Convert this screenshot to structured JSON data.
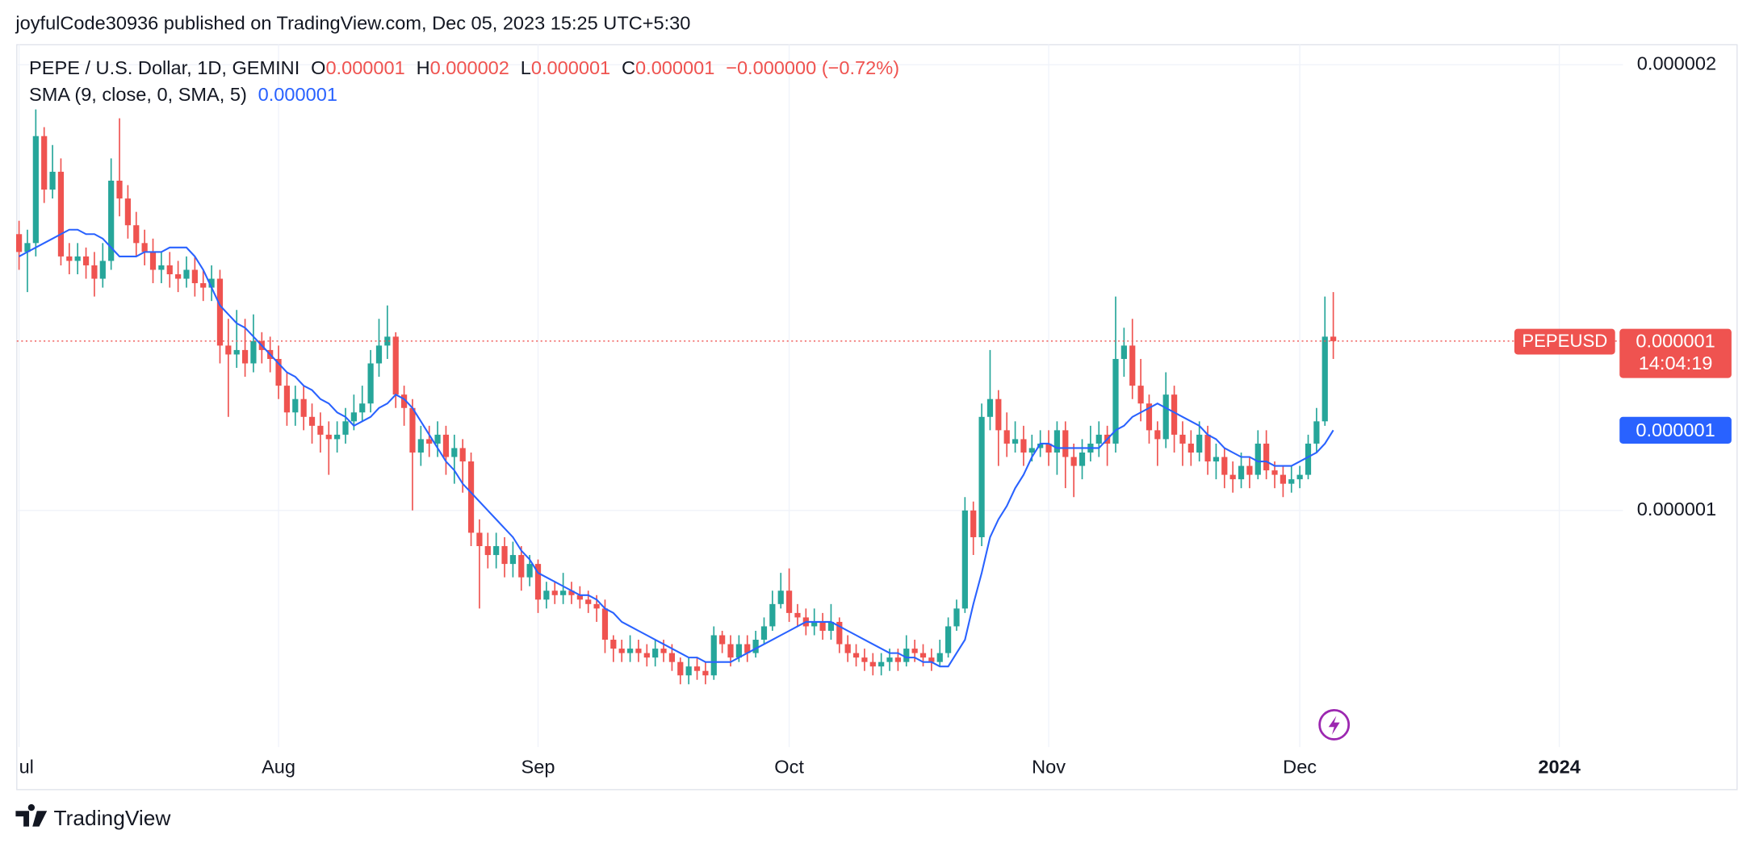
{
  "header": {
    "publisher": "joyfulCode30936 published on TradingView.com, Dec 05, 2023 15:25 UTC+5:30"
  },
  "legend": {
    "symbol": "PEPE / U.S. Dollar, 1D, GEMINI",
    "o_label": "O",
    "open": "0.000001",
    "h_label": "H",
    "high": "0.000002",
    "l_label": "L",
    "low": "0.000001",
    "c_label": "C",
    "close": "0.000001",
    "change": "−0.000000 (−0.72%)",
    "indicator": "SMA (9, close, 0, SMA, 5)",
    "indicator_value": "0.000001"
  },
  "badges": {
    "symbol": "PEPEUSD",
    "price": "0.000001",
    "countdown": "14:04:19",
    "sma": "0.000001"
  },
  "footer": {
    "brand": "TradingView"
  },
  "chart_data": {
    "type": "candlestick",
    "up_color": "#26a69a",
    "down_color": "#ef5350",
    "sma_color": "#2962ff",
    "grid": true,
    "xlim": [
      -0.27,
      191.6
    ],
    "ylim": [
      4.69e-07,
      2.045e-06
    ],
    "yticks": [
      2e-06,
      1e-06
    ],
    "xticks": [
      {
        "value": 0,
        "label": "ul"
      },
      {
        "value": 31,
        "label": "Aug"
      },
      {
        "value": 62,
        "label": "Sep"
      },
      {
        "value": 92,
        "label": "Oct"
      },
      {
        "value": 123,
        "label": "Nov"
      },
      {
        "value": 153,
        "label": "Dec"
      },
      {
        "value": 184,
        "label": "2024"
      }
    ],
    "open": [
      1.62e-06,
      1.58e-06,
      1.6e-06,
      1.84e-06,
      1.72e-06,
      1.76e-06,
      1.57e-06,
      1.56e-06,
      1.57e-06,
      1.55e-06,
      1.52e-06,
      1.56e-06,
      1.74e-06,
      1.7e-06,
      1.64e-06,
      1.6e-06,
      1.58e-06,
      1.54e-06,
      1.55e-06,
      1.53e-06,
      1.52e-06,
      1.54e-06,
      1.51e-06,
      1.5e-06,
      1.52e-06,
      1.37e-06,
      1.35e-06,
      1.36e-06,
      1.33e-06,
      1.38e-06,
      1.36e-06,
      1.34e-06,
      1.28e-06,
      1.22e-06,
      1.25e-06,
      1.21e-06,
      1.19e-06,
      1.17e-06,
      1.16e-06,
      1.17e-06,
      1.2e-06,
      1.22e-06,
      1.24e-06,
      1.33e-06,
      1.37e-06,
      1.39e-06,
      1.26e-06,
      1.23e-06,
      1.13e-06,
      1.16e-06,
      1.15e-06,
      1.17e-06,
      1.12e-06,
      1.14e-06,
      1.11e-06,
      9.5e-07,
      9.2e-07,
      9e-07,
      9.2e-07,
      8.8e-07,
      9e-07,
      8.5e-07,
      8.8e-07,
      8e-07,
      8.2e-07,
      8.1e-07,
      8.2e-07,
      8.1e-07,
      8e-07,
      7.9e-07,
      7.8e-07,
      7.1e-07,
      6.9e-07,
      6.8e-07,
      6.9e-07,
      6.8e-07,
      6.7e-07,
      6.9e-07,
      6.8e-07,
      6.6e-07,
      6.3e-07,
      6.5e-07,
      6.4e-07,
      6.3e-07,
      7.2e-07,
      7e-07,
      6.7e-07,
      7e-07,
      6.8e-07,
      7.1e-07,
      7.4e-07,
      7.9e-07,
      8.2e-07,
      7.7e-07,
      7.6e-07,
      7.4e-07,
      7.5e-07,
      7.3e-07,
      7.5e-07,
      7e-07,
      6.8e-07,
      6.7e-07,
      6.6e-07,
      6.5e-07,
      6.6e-07,
      6.7e-07,
      6.6e-07,
      6.9e-07,
      6.8e-07,
      6.7e-07,
      6.6e-07,
      6.8e-07,
      7.4e-07,
      7.8e-07,
      1e-06,
      9.4e-07,
      1.21e-06,
      1.25e-06,
      1.18e-06,
      1.15e-06,
      1.16e-06,
      1.13e-06,
      1.14e-06,
      1.15e-06,
      1.13e-06,
      1.18e-06,
      1.12e-06,
      1.1e-06,
      1.13e-06,
      1.15e-06,
      1.17e-06,
      1.15e-06,
      1.34e-06,
      1.37e-06,
      1.28e-06,
      1.24e-06,
      1.18e-06,
      1.16e-06,
      1.26e-06,
      1.17e-06,
      1.15e-06,
      1.13e-06,
      1.17e-06,
      1.11e-06,
      1.12e-06,
      1.08e-06,
      1.07e-06,
      1.1e-06,
      1.08e-06,
      1.15e-06,
      1.09e-06,
      1.08e-06,
      1.06e-06,
      1.07e-06,
      1.08e-06,
      1.15e-06,
      1.2e-06,
      1.39e-06
    ],
    "high": [
      1.65e-06,
      1.63e-06,
      1.9e-06,
      1.86e-06,
      1.82e-06,
      1.79e-06,
      1.6e-06,
      1.6e-06,
      1.59e-06,
      1.58e-06,
      1.6e-06,
      1.79e-06,
      1.88e-06,
      1.73e-06,
      1.67e-06,
      1.63e-06,
      1.61e-06,
      1.58e-06,
      1.58e-06,
      1.56e-06,
      1.57e-06,
      1.57e-06,
      1.54e-06,
      1.55e-06,
      1.54e-06,
      1.43e-06,
      1.45e-06,
      1.43e-06,
      1.44e-06,
      1.4e-06,
      1.39e-06,
      1.37e-06,
      1.31e-06,
      1.28e-06,
      1.28e-06,
      1.24e-06,
      1.22e-06,
      1.2e-06,
      1.2e-06,
      1.23e-06,
      1.26e-06,
      1.28e-06,
      1.36e-06,
      1.43e-06,
      1.46e-06,
      1.4e-06,
      1.28e-06,
      1.25e-06,
      1.19e-06,
      1.19e-06,
      1.2e-06,
      1.19e-06,
      1.17e-06,
      1.16e-06,
      1.13e-06,
      9.8e-07,
      9.5e-07,
      9.5e-07,
      9.4e-07,
      9.3e-07,
      9.2e-07,
      9e-07,
      8.9e-07,
      8.4e-07,
      8.4e-07,
      8.6e-07,
      8.4e-07,
      8.3e-07,
      8.2e-07,
      8.1e-07,
      8e-07,
      7.2e-07,
      7.1e-07,
      7.2e-07,
      7.1e-07,
      7e-07,
      7.1e-07,
      7.1e-07,
      7e-07,
      6.7e-07,
      6.7e-07,
      6.7e-07,
      6.6e-07,
      7.4e-07,
      7.3e-07,
      7.2e-07,
      7.2e-07,
      7.2e-07,
      7.3e-07,
      7.6e-07,
      8.2e-07,
      8.6e-07,
      8.7e-07,
      7.9e-07,
      7.8e-07,
      7.8e-07,
      7.7e-07,
      7.9e-07,
      7.6e-07,
      7.2e-07,
      7e-07,
      6.9e-07,
      6.8e-07,
      6.8e-07,
      6.9e-07,
      6.9e-07,
      7.2e-07,
      7.1e-07,
      7e-07,
      6.9e-07,
      7.1e-07,
      7.6e-07,
      8e-07,
      1.03e-06,
      1.02e-06,
      1.24e-06,
      1.36e-06,
      1.27e-06,
      1.22e-06,
      1.2e-06,
      1.19e-06,
      1.17e-06,
      1.18e-06,
      1.18e-06,
      1.2e-06,
      1.2e-06,
      1.15e-06,
      1.16e-06,
      1.19e-06,
      1.2e-06,
      1.19e-06,
      1.48e-06,
      1.41e-06,
      1.43e-06,
      1.34e-06,
      1.26e-06,
      1.2e-06,
      1.31e-06,
      1.28e-06,
      1.2e-06,
      1.18e-06,
      1.2e-06,
      1.19e-06,
      1.15e-06,
      1.14e-06,
      1.11e-06,
      1.13e-06,
      1.12e-06,
      1.18e-06,
      1.18e-06,
      1.11e-06,
      1.1e-06,
      1.1e-06,
      1.1e-06,
      1.17e-06,
      1.23e-06,
      1.48e-06,
      1.49e-06
    ],
    "low": [
      1.54e-06,
      1.49e-06,
      1.57e-06,
      1.69e-06,
      1.7e-06,
      1.55e-06,
      1.53e-06,
      1.53e-06,
      1.52e-06,
      1.48e-06,
      1.5e-06,
      1.54e-06,
      1.66e-06,
      1.61e-06,
      1.57e-06,
      1.55e-06,
      1.51e-06,
      1.51e-06,
      1.5e-06,
      1.49e-06,
      1.5e-06,
      1.48e-06,
      1.47e-06,
      1.47e-06,
      1.33e-06,
      1.21e-06,
      1.32e-06,
      1.3e-06,
      1.31e-06,
      1.33e-06,
      1.31e-06,
      1.25e-06,
      1.19e-06,
      1.19e-06,
      1.18e-06,
      1.15e-06,
      1.13e-06,
      1.08e-06,
      1.13e-06,
      1.15e-06,
      1.18e-06,
      1.2e-06,
      1.22e-06,
      1.3e-06,
      1.34e-06,
      1.23e-06,
      1.19e-06,
      1e-06,
      1.1e-06,
      1.12e-06,
      1.12e-06,
      1.08e-06,
      1.06e-06,
      1.04e-06,
      9.2e-07,
      7.8e-07,
      8.7e-07,
      8.7e-07,
      8.5e-07,
      8.5e-07,
      8.2e-07,
      8.3e-07,
      7.7e-07,
      7.8e-07,
      7.9e-07,
      7.9e-07,
      7.9e-07,
      7.8e-07,
      7.7e-07,
      7.5e-07,
      6.8e-07,
      6.6e-07,
      6.6e-07,
      6.6e-07,
      6.6e-07,
      6.5e-07,
      6.5e-07,
      6.6e-07,
      6.4e-07,
      6.1e-07,
      6.1e-07,
      6.2e-07,
      6.1e-07,
      6.2e-07,
      6.8e-07,
      6.5e-07,
      6.6e-07,
      6.6e-07,
      6.7e-07,
      7e-07,
      7.3e-07,
      7.8e-07,
      7.5e-07,
      7.4e-07,
      7.2e-07,
      7.2e-07,
      7.1e-07,
      7.1e-07,
      6.8e-07,
      6.6e-07,
      6.5e-07,
      6.4e-07,
      6.3e-07,
      6.3e-07,
      6.4e-07,
      6.4e-07,
      6.5e-07,
      6.6e-07,
      6.5e-07,
      6.4e-07,
      6.5e-07,
      6.7e-07,
      7.3e-07,
      7.7e-07,
      9e-07,
      9.2e-07,
      1.18e-06,
      1.1e-06,
      1.12e-06,
      1.13e-06,
      1.1e-06,
      1.11e-06,
      1.12e-06,
      1.1e-06,
      1.08e-06,
      1.05e-06,
      1.03e-06,
      1.07e-06,
      1.11e-06,
      1.12e-06,
      1.1e-06,
      1.13e-06,
      1.3e-06,
      1.25e-06,
      1.2e-06,
      1.15e-06,
      1.1e-06,
      1.14e-06,
      1.13e-06,
      1.1e-06,
      1.1e-06,
      1.11e-06,
      1.08e-06,
      1.07e-06,
      1.05e-06,
      1.04e-06,
      1.05e-06,
      1.05e-06,
      1.07e-06,
      1.07e-06,
      1.05e-06,
      1.03e-06,
      1.04e-06,
      1.05e-06,
      1.07e-06,
      1.13e-06,
      1.19e-06,
      1.34e-06
    ],
    "close": [
      1.58e-06,
      1.6e-06,
      1.84e-06,
      1.72e-06,
      1.76e-06,
      1.57e-06,
      1.56e-06,
      1.57e-06,
      1.55e-06,
      1.52e-06,
      1.56e-06,
      1.74e-06,
      1.7e-06,
      1.64e-06,
      1.6e-06,
      1.58e-06,
      1.54e-06,
      1.55e-06,
      1.53e-06,
      1.52e-06,
      1.54e-06,
      1.51e-06,
      1.5e-06,
      1.52e-06,
      1.37e-06,
      1.35e-06,
      1.36e-06,
      1.33e-06,
      1.38e-06,
      1.36e-06,
      1.34e-06,
      1.28e-06,
      1.22e-06,
      1.25e-06,
      1.21e-06,
      1.19e-06,
      1.17e-06,
      1.16e-06,
      1.17e-06,
      1.2e-06,
      1.22e-06,
      1.24e-06,
      1.33e-06,
      1.37e-06,
      1.39e-06,
      1.26e-06,
      1.23e-06,
      1.13e-06,
      1.16e-06,
      1.15e-06,
      1.17e-06,
      1.12e-06,
      1.14e-06,
      1.11e-06,
      9.5e-07,
      9.2e-07,
      9e-07,
      9.2e-07,
      8.8e-07,
      9e-07,
      8.5e-07,
      8.8e-07,
      8e-07,
      8.2e-07,
      8.1e-07,
      8.2e-07,
      8.1e-07,
      8e-07,
      7.9e-07,
      7.8e-07,
      7.1e-07,
      6.9e-07,
      6.8e-07,
      6.9e-07,
      6.8e-07,
      6.7e-07,
      6.9e-07,
      6.8e-07,
      6.6e-07,
      6.3e-07,
      6.5e-07,
      6.4e-07,
      6.3e-07,
      7.2e-07,
      7e-07,
      6.7e-07,
      7e-07,
      6.8e-07,
      7.1e-07,
      7.4e-07,
      7.9e-07,
      8.2e-07,
      7.7e-07,
      7.6e-07,
      7.4e-07,
      7.5e-07,
      7.3e-07,
      7.5e-07,
      7e-07,
      6.8e-07,
      6.7e-07,
      6.6e-07,
      6.5e-07,
      6.6e-07,
      6.7e-07,
      6.6e-07,
      6.9e-07,
      6.8e-07,
      6.7e-07,
      6.6e-07,
      6.8e-07,
      7.4e-07,
      7.8e-07,
      1e-06,
      9.4e-07,
      1.21e-06,
      1.25e-06,
      1.18e-06,
      1.15e-06,
      1.16e-06,
      1.13e-06,
      1.14e-06,
      1.15e-06,
      1.13e-06,
      1.18e-06,
      1.12e-06,
      1.1e-06,
      1.13e-06,
      1.15e-06,
      1.17e-06,
      1.15e-06,
      1.34e-06,
      1.37e-06,
      1.28e-06,
      1.24e-06,
      1.18e-06,
      1.16e-06,
      1.26e-06,
      1.17e-06,
      1.15e-06,
      1.13e-06,
      1.17e-06,
      1.11e-06,
      1.12e-06,
      1.08e-06,
      1.07e-06,
      1.1e-06,
      1.08e-06,
      1.15e-06,
      1.09e-06,
      1.08e-06,
      1.06e-06,
      1.07e-06,
      1.08e-06,
      1.15e-06,
      1.2e-06,
      1.39e-06,
      1.38e-06
    ],
    "sma": [
      1.57e-06,
      1.58e-06,
      1.59e-06,
      1.6e-06,
      1.61e-06,
      1.62e-06,
      1.63e-06,
      1.63e-06,
      1.62e-06,
      1.62e-06,
      1.61e-06,
      1.59e-06,
      1.57e-06,
      1.57e-06,
      1.57e-06,
      1.58e-06,
      1.58e-06,
      1.58e-06,
      1.59e-06,
      1.59e-06,
      1.59e-06,
      1.57e-06,
      1.54e-06,
      1.5e-06,
      1.46e-06,
      1.44e-06,
      1.42e-06,
      1.41e-06,
      1.39e-06,
      1.37e-06,
      1.35e-06,
      1.33e-06,
      1.31e-06,
      1.3e-06,
      1.28e-06,
      1.27e-06,
      1.25e-06,
      1.24e-06,
      1.22e-06,
      1.21e-06,
      1.19e-06,
      1.2e-06,
      1.21e-06,
      1.23e-06,
      1.24e-06,
      1.26e-06,
      1.25e-06,
      1.23e-06,
      1.2e-06,
      1.17e-06,
      1.14e-06,
      1.11e-06,
      1.09e-06,
      1.06e-06,
      1.04e-06,
      1.02e-06,
      1e-06,
      9.8e-07,
      9.6e-07,
      9.4e-07,
      9.1e-07,
      8.9e-07,
      8.6e-07,
      8.5e-07,
      8.4e-07,
      8.3e-07,
      8.2e-07,
      8.1e-07,
      8.1e-07,
      8e-07,
      7.8e-07,
      7.7e-07,
      7.5e-07,
      7.4e-07,
      7.3e-07,
      7.2e-07,
      7.1e-07,
      7e-07,
      6.9e-07,
      6.8e-07,
      6.7e-07,
      6.7e-07,
      6.6e-07,
      6.6e-07,
      6.6e-07,
      6.6e-07,
      6.7e-07,
      6.8e-07,
      6.9e-07,
      7e-07,
      7.1e-07,
      7.2e-07,
      7.3e-07,
      7.4e-07,
      7.5e-07,
      7.5e-07,
      7.5e-07,
      7.5e-07,
      7.4e-07,
      7.3e-07,
      7.2e-07,
      7.1e-07,
      7e-07,
      6.9e-07,
      6.8e-07,
      6.8e-07,
      6.7e-07,
      6.7e-07,
      6.6e-07,
      6.6e-07,
      6.5e-07,
      6.5e-07,
      6.8e-07,
      7.1e-07,
      7.9e-07,
      8.6e-07,
      9.4e-07,
      9.8e-07,
      1.01e-06,
      1.05e-06,
      1.08e-06,
      1.12e-06,
      1.15e-06,
      1.15e-06,
      1.14e-06,
      1.14e-06,
      1.14e-06,
      1.14e-06,
      1.14e-06,
      1.14e-06,
      1.16e-06,
      1.18e-06,
      1.19e-06,
      1.21e-06,
      1.22e-06,
      1.23e-06,
      1.24e-06,
      1.23e-06,
      1.22e-06,
      1.21e-06,
      1.2e-06,
      1.19e-06,
      1.17e-06,
      1.16e-06,
      1.14e-06,
      1.13e-06,
      1.12e-06,
      1.12e-06,
      1.11e-06,
      1.11e-06,
      1.1e-06,
      1.1e-06,
      1.1e-06,
      1.11e-06,
      1.12e-06,
      1.13e-06,
      1.15e-06,
      1.18e-06
    ]
  }
}
